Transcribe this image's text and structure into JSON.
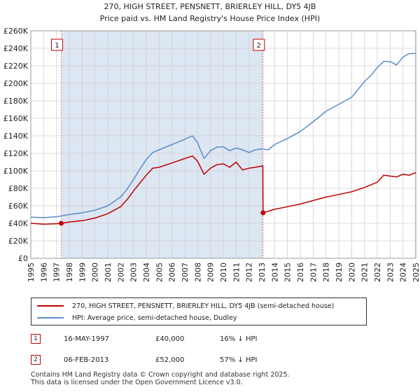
{
  "chart_data": {
    "type": "line",
    "title": "270, HIGH STREET, PENSNETT, BRIERLEY HILL, DY5 4JB",
    "subtitle": "Price paid vs. HM Land Registry's House Price Index (HPI)",
    "xlim": [
      1995,
      2025
    ],
    "ylim": [
      0,
      260000
    ],
    "y_ticks": [
      0,
      20000,
      40000,
      60000,
      80000,
      100000,
      120000,
      140000,
      160000,
      180000,
      200000,
      220000,
      240000,
      260000
    ],
    "y_tick_labels": [
      "£0",
      "£20K",
      "£40K",
      "£60K",
      "£80K",
      "£100K",
      "£120K",
      "£140K",
      "£160K",
      "£180K",
      "£200K",
      "£220K",
      "£240K",
      "£260K"
    ],
    "x_ticks": [
      1995,
      1996,
      1997,
      1998,
      1999,
      2000,
      2001,
      2002,
      2003,
      2004,
      2005,
      2006,
      2007,
      2008,
      2009,
      2010,
      2011,
      2012,
      2013,
      2014,
      2015,
      2016,
      2017,
      2018,
      2019,
      2020,
      2021,
      2022,
      2023,
      2024,
      2025
    ],
    "x_tick_labels": [
      "1995",
      "1996",
      "1997",
      "1998",
      "1999",
      "2000",
      "2001",
      "2002",
      "2003",
      "2004",
      "2005",
      "2006",
      "2007",
      "2008",
      "2009",
      "2010",
      "2011",
      "2012",
      "2013",
      "2014",
      "2015",
      "2016",
      "2017",
      "2018",
      "2019",
      "2020",
      "2021",
      "2022",
      "2023",
      "2024",
      "2025"
    ],
    "grid": true,
    "series": [
      {
        "name": "270, HIGH STREET, PENSNETT, BRIERLEY HILL, DY5 4JB (semi-detached house)",
        "color": "#c00000",
        "x": [
          1995.0,
          1996.0,
          1997.0,
          1997.37,
          1998.0,
          1999.0,
          2000.0,
          2001.0,
          2002.0,
          2002.5,
          2003.0,
          2003.5,
          2004.0,
          2004.5,
          2005.0,
          2006.0,
          2007.0,
          2007.6,
          2008.0,
          2008.5,
          2009.0,
          2009.5,
          2010.0,
          2010.5,
          2011.0,
          2011.5,
          2012.0,
          2012.5,
          2013.0,
          2013.08,
          2013.1,
          2014.0,
          2015.0,
          2016.0,
          2017.0,
          2018.0,
          2019.0,
          2020.0,
          2021.0,
          2022.0,
          2022.5,
          2023.0,
          2023.5,
          2024.0,
          2024.5,
          2025.0
        ],
        "y": [
          40000,
          39000,
          39500,
          40000,
          41500,
          43000,
          46000,
          51000,
          59000,
          67000,
          77000,
          86000,
          95000,
          103000,
          104000,
          109000,
          114000,
          117000,
          111000,
          96000,
          103000,
          107000,
          108000,
          104000,
          110000,
          101000,
          103000,
          104000,
          105500,
          106000,
          52000,
          56000,
          59000,
          62000,
          66000,
          70000,
          73000,
          76000,
          81000,
          87000,
          95000,
          94000,
          93000,
          96000,
          95000,
          98000
        ]
      },
      {
        "name": "HPI: Average price, semi-detached house, Dudley",
        "color": "#5b8cc8",
        "x": [
          1995.0,
          1996.0,
          1997.0,
          1998.0,
          1999.0,
          2000.0,
          2001.0,
          2002.0,
          2002.5,
          2003.0,
          2003.5,
          2004.0,
          2004.5,
          2005.0,
          2006.0,
          2007.0,
          2007.6,
          2008.0,
          2008.5,
          2009.0,
          2009.5,
          2010.0,
          2010.5,
          2011.0,
          2011.5,
          2012.0,
          2012.5,
          2013.0,
          2013.5,
          2014.0,
          2015.0,
          2016.0,
          2017.0,
          2018.0,
          2019.0,
          2020.0,
          2021.0,
          2021.5,
          2022.0,
          2022.5,
          2023.0,
          2023.5,
          2024.0,
          2024.5,
          2025.0
        ],
        "y": [
          47000,
          46500,
          47500,
          50000,
          52000,
          55000,
          60000,
          70000,
          79000,
          90000,
          102000,
          113000,
          121000,
          124000,
          130000,
          136000,
          140000,
          132000,
          114000,
          123000,
          127000,
          127500,
          123000,
          126000,
          124000,
          121000,
          124000,
          125000,
          124000,
          130000,
          137000,
          145000,
          156000,
          168000,
          176000,
          184000,
          202000,
          209000,
          218000,
          225000,
          225000,
          221000,
          230000,
          234000,
          234000
        ]
      }
    ],
    "annotations": [
      {
        "label": "1",
        "x": 1997.37
      },
      {
        "label": "2",
        "x": 2013.1
      }
    ],
    "sale_points": [
      {
        "x": 1997.37,
        "y": 40000
      },
      {
        "x": 2013.1,
        "y": 52000
      }
    ]
  },
  "legend": {
    "items": [
      {
        "label": "270, HIGH STREET, PENSNETT, BRIERLEY HILL, DY5 4JB (semi-detached house)",
        "color": "#c00000"
      },
      {
        "label": "HPI: Average price, semi-detached house, Dudley",
        "color": "#5b8cc8"
      }
    ]
  },
  "transactions": [
    {
      "num": "1",
      "date": "16-MAY-1997",
      "price": "£40,000",
      "hpi": "16% ↓ HPI"
    },
    {
      "num": "2",
      "date": "06-FEB-2013",
      "price": "£52,000",
      "hpi": "57% ↓ HPI"
    }
  ],
  "footer": {
    "line1": "Contains HM Land Registry data © Crown copyright and database right 2025.",
    "line2": "This data is licensed under the Open Government Licence v3.0."
  },
  "colors": {
    "shade": "#dde6f3",
    "grid": "#d0d0d0",
    "marker": "#c00000"
  }
}
